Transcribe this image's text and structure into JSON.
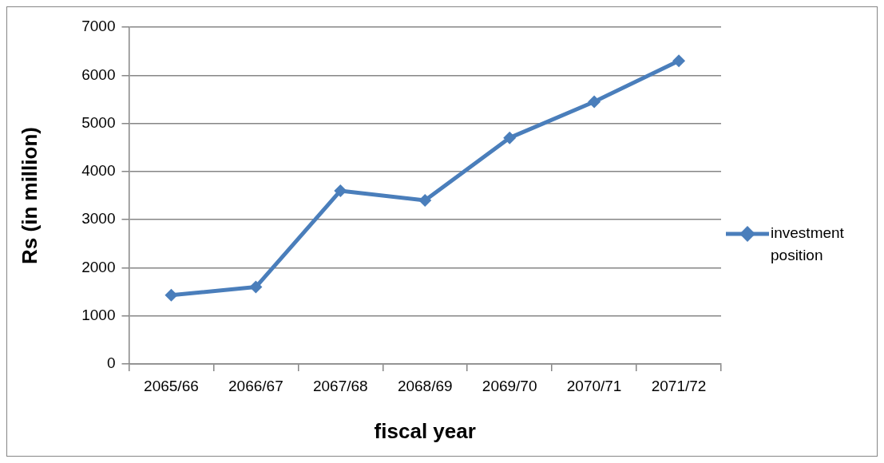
{
  "chart_data": {
    "type": "line",
    "xlabel": "fiscal year",
    "ylabel": "Rs (in million)",
    "categories": [
      "2065/66",
      "2066/67",
      "2067/68",
      "2068/69",
      "2069/70",
      "2070/71",
      "2071/72"
    ],
    "series": [
      {
        "name": "investment position",
        "color": "#4a7ebb",
        "values": [
          1430,
          1600,
          3600,
          3400,
          4700,
          5450,
          6300
        ]
      }
    ],
    "ylim": [
      0,
      7000
    ],
    "yticks": [
      0,
      1000,
      2000,
      3000,
      4000,
      5000,
      6000,
      7000
    ],
    "grid": "y",
    "legend": "right",
    "marker": "diamond",
    "line_style": "solid"
  }
}
